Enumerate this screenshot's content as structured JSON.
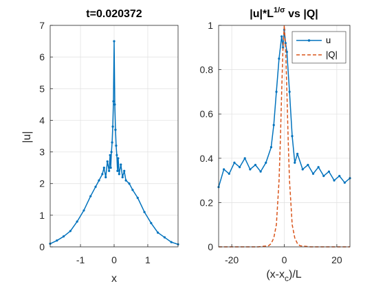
{
  "colors": {
    "u": "#0072BD",
    "Q": "#D95319",
    "grid": "#dfdfdf",
    "axis": "#262626"
  },
  "chart_data": [
    {
      "type": "line",
      "title": "t=0.020372",
      "xlabel": "x",
      "ylabel": "|u|",
      "xlim": [
        -1.9,
        1.9
      ],
      "ylim": [
        0,
        7
      ],
      "xticks": [
        -1,
        0,
        1
      ],
      "yticks": [
        0,
        1,
        2,
        3,
        4,
        5,
        6,
        7
      ],
      "grid": true,
      "series": [
        {
          "markers": true,
          "x": [
            -1.9,
            -1.7,
            -1.5,
            -1.3,
            -1.1,
            -0.9,
            -0.7,
            -0.55,
            -0.45,
            -0.35,
            -0.3,
            -0.25,
            -0.2,
            -0.15,
            -0.12,
            -0.1,
            -0.08,
            -0.06,
            -0.04,
            -0.02,
            0,
            0.02,
            0.04,
            0.06,
            0.08,
            0.1,
            0.12,
            0.15,
            0.2,
            0.25,
            0.3,
            0.35,
            0.45,
            0.55,
            0.7,
            0.9,
            1.1,
            1.3,
            1.5,
            1.7,
            1.9
          ],
          "y": [
            0.1,
            0.2,
            0.33,
            0.5,
            0.8,
            1.15,
            1.6,
            1.9,
            2.1,
            2.3,
            2.5,
            2.2,
            2.7,
            2.4,
            2.9,
            2.5,
            3.0,
            3.3,
            3.8,
            4.6,
            6.5,
            4.5,
            3.7,
            3.2,
            2.9,
            2.4,
            2.8,
            2.3,
            2.6,
            2.2,
            2.4,
            2.1,
            2.0,
            1.8,
            1.55,
            1.1,
            0.75,
            0.45,
            0.3,
            0.15,
            0.08
          ]
        }
      ]
    },
    {
      "type": "line",
      "title": "|u|*L^{1/σ} vs |Q|",
      "xlabel": "(x-x_c)/L",
      "xlim": [
        -25,
        25
      ],
      "ylim": [
        0,
        1
      ],
      "xticks": [
        -20,
        0,
        20
      ],
      "yticks": [
        0,
        0.2,
        0.4,
        0.6,
        0.8,
        1
      ],
      "grid": true,
      "legend": {
        "position": "top-right",
        "entries": [
          "u",
          "|Q|"
        ]
      },
      "series": [
        {
          "name": "u",
          "markers": true,
          "x": [
            -25,
            -23,
            -21,
            -19,
            -17,
            -15,
            -13,
            -11,
            -9,
            -7,
            -5,
            -4,
            -3,
            -2,
            -1,
            -0.5,
            0,
            0.5,
            1,
            2,
            3,
            4,
            5,
            7,
            9,
            11,
            13,
            15,
            17,
            19,
            21,
            23,
            25
          ],
          "y": [
            0.27,
            0.35,
            0.33,
            0.38,
            0.36,
            0.4,
            0.35,
            0.37,
            0.34,
            0.38,
            0.45,
            0.55,
            0.7,
            0.85,
            0.95,
            0.9,
            0.98,
            0.92,
            0.88,
            0.7,
            0.5,
            0.38,
            0.42,
            0.35,
            0.37,
            0.33,
            0.36,
            0.32,
            0.34,
            0.3,
            0.32,
            0.29,
            0.31
          ]
        },
        {
          "name": "|Q|",
          "dashed": true,
          "x": [
            -25,
            -10,
            -6,
            -5,
            -4,
            -3,
            -2,
            -1.5,
            -1,
            -0.5,
            0,
            0.5,
            1,
            1.5,
            2,
            3,
            4,
            5,
            6,
            10,
            25
          ],
          "y": [
            0,
            0,
            0.005,
            0.015,
            0.04,
            0.1,
            0.3,
            0.48,
            0.7,
            0.9,
            1.0,
            0.9,
            0.7,
            0.48,
            0.3,
            0.1,
            0.04,
            0.015,
            0.005,
            0,
            0
          ]
        }
      ]
    }
  ]
}
